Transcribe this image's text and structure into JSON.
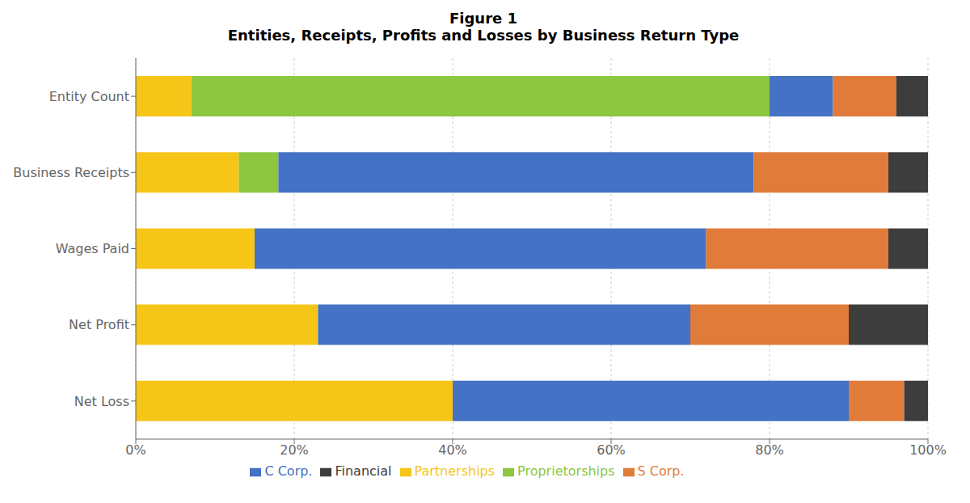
{
  "chart_data": {
    "type": "bar",
    "title": "Figure 1",
    "subtitle": "Entities, Receipts, Profits and Losses by Business Return Type",
    "orientation": "horizontal",
    "stacked": true,
    "grid": true,
    "legend": "bottom",
    "categories": [
      "Entity Count",
      "Business Receipts",
      "Wages Paid",
      "Net Profit",
      "Net Loss"
    ],
    "series": [
      {
        "name": "Partnerships",
        "color": "#F5C518",
        "values": [
          7.0,
          13.0,
          15.0,
          23.0,
          40.0
        ]
      },
      {
        "name": "Proprietorships",
        "color": "#8DC63F",
        "values": [
          73.0,
          5.0,
          0.0,
          0.0,
          0.0
        ]
      },
      {
        "name": "C Corp.",
        "color": "#4472C4",
        "values": [
          8.0,
          60.0,
          57.0,
          47.0,
          50.0
        ]
      },
      {
        "name": "S Corp.",
        "color": "#E07B39",
        "values": [
          8.0,
          17.0,
          23.0,
          20.0,
          7.0
        ]
      },
      {
        "name": "Financial",
        "color": "#3D3D3D",
        "values": [
          4.0,
          5.0,
          5.0,
          10.0,
          3.0
        ]
      }
    ],
    "xlim": [
      0,
      100
    ],
    "xticks": [
      {
        "value": 0,
        "label": "0%"
      },
      {
        "value": 20,
        "label": "20%"
      },
      {
        "value": 40,
        "label": "40%"
      },
      {
        "value": 60,
        "label": "60%"
      },
      {
        "value": 80,
        "label": "80%"
      },
      {
        "value": 100,
        "label": "100%"
      }
    ]
  }
}
